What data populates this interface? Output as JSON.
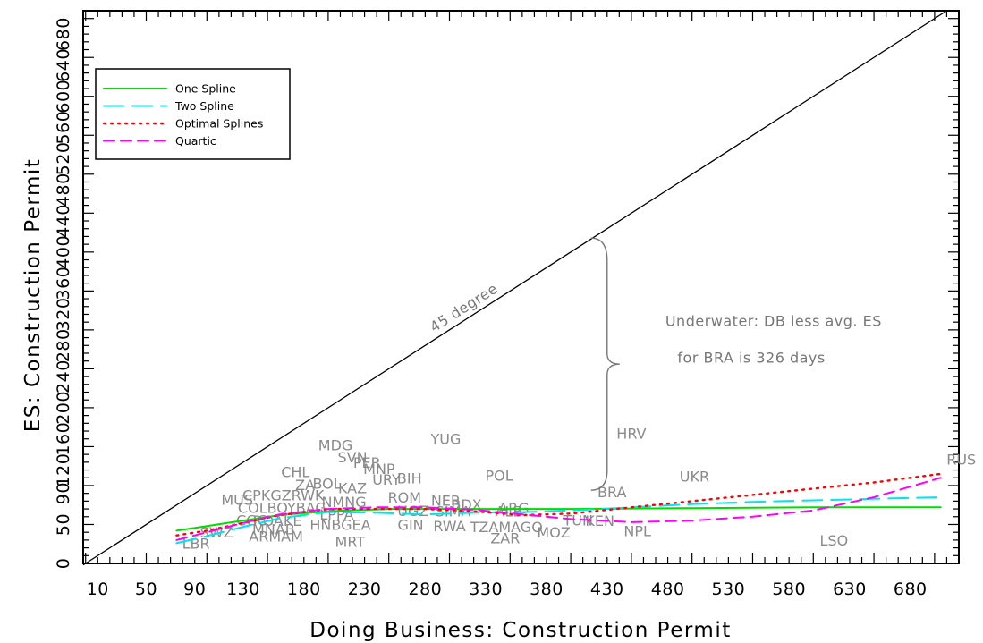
{
  "chart_data": {
    "type": "line",
    "xlabel": "Doing Business: Construction Permit",
    "ylabel": "ES:  Construction Permit",
    "xlim": [
      -2,
      720
    ],
    "ylim": [
      0,
      710
    ],
    "xticks": [
      10,
      50,
      90,
      130,
      180,
      230,
      280,
      330,
      380,
      430,
      480,
      530,
      580,
      630,
      680
    ],
    "yticks": [
      0,
      50,
      90,
      120,
      160,
      200,
      240,
      280,
      320,
      360,
      400,
      440,
      480,
      520,
      560,
      600,
      640,
      680
    ],
    "ytick_labels": [
      "0",
      "50",
      "90",
      "120",
      "160",
      "200",
      "240",
      "280",
      "320",
      "360",
      "400",
      "440",
      "480",
      "520",
      "560",
      "600",
      "640",
      "680"
    ],
    "xtick_labels": [
      "10",
      "50",
      "90",
      "130",
      "180",
      "230",
      "280",
      "330",
      "380",
      "430",
      "480",
      "530",
      "580",
      "630",
      "680"
    ],
    "legend": {
      "position": "top-left",
      "entries": [
        {
          "label": "One Spline",
          "color": "#00dd00",
          "dash": "solid"
        },
        {
          "label": "Two Spline",
          "color": "#00e5ee",
          "dash": "long-dash"
        },
        {
          "label": "Optimal Splines",
          "color": "#ff0000",
          "dash": "dotted"
        },
        {
          "label": "Quartic",
          "color": "#ff00ff",
          "dash": "dash"
        }
      ]
    },
    "reference_line": {
      "label": "45 degree",
      "from": [
        -2,
        -2
      ],
      "to": [
        710,
        710
      ]
    },
    "series": [
      {
        "name": "One Spline",
        "color": "#00dd00",
        "dash": "solid",
        "x": [
          75,
          100,
          130,
          160,
          200,
          250,
          300,
          400,
          500,
          600,
          705
        ],
        "y": [
          42,
          48,
          55,
          62,
          67,
          70,
          70,
          70,
          71,
          72,
          72
        ]
      },
      {
        "name": "Two Spline",
        "color": "#00e5ee",
        "dash": "long-dash",
        "x": [
          75,
          100,
          130,
          160,
          200,
          240,
          280,
          320,
          360,
          400,
          450,
          500,
          550,
          600,
          650,
          705
        ],
        "y": [
          26,
          35,
          47,
          58,
          66,
          65,
          63,
          65,
          66,
          68,
          72,
          76,
          79,
          81,
          83,
          85
        ]
      },
      {
        "name": "Optimal Splines",
        "color": "#ff0000",
        "dash": "dotted",
        "x": [
          75,
          100,
          130,
          160,
          200,
          240,
          280,
          320,
          360,
          400,
          450,
          500,
          550,
          600,
          650,
          705
        ],
        "y": [
          36,
          42,
          52,
          62,
          70,
          70,
          70,
          67,
          62,
          64,
          72,
          80,
          88,
          96,
          104,
          115
        ]
      },
      {
        "name": "Quartic",
        "color": "#ff00ff",
        "dash": "dash",
        "x": [
          75,
          100,
          130,
          160,
          200,
          240,
          280,
          320,
          360,
          400,
          450,
          500,
          550,
          600,
          650,
          705
        ],
        "y": [
          30,
          40,
          52,
          63,
          70,
          72,
          72,
          69,
          63,
          57,
          53,
          55,
          60,
          68,
          85,
          110
        ]
      }
    ],
    "points": [
      {
        "label": "MDG",
        "x": 206,
        "y": 152
      },
      {
        "label": "SVN",
        "x": 220,
        "y": 137
      },
      {
        "label": "PER",
        "x": 232,
        "y": 130
      },
      {
        "label": "MNP",
        "x": 242,
        "y": 122
      },
      {
        "label": "YUG",
        "x": 297,
        "y": 160
      },
      {
        "label": "HRV",
        "x": 450,
        "y": 167
      },
      {
        "label": "CHL",
        "x": 173,
        "y": 118
      },
      {
        "label": "URY",
        "x": 248,
        "y": 108
      },
      {
        "label": "BIH",
        "x": 267,
        "y": 110
      },
      {
        "label": "POL",
        "x": 341,
        "y": 113
      },
      {
        "label": "UKR",
        "x": 502,
        "y": 112
      },
      {
        "label": "RUS",
        "x": 722,
        "y": 134
      },
      {
        "label": "ZA",
        "x": 181,
        "y": 101
      },
      {
        "label": "BOL",
        "x": 199,
        "y": 103
      },
      {
        "label": "KAZ",
        "x": 220,
        "y": 97
      },
      {
        "label": "BRA",
        "x": 434,
        "y": 92
      },
      {
        "label": "CPKGZRWK",
        "x": 163,
        "y": 88
      },
      {
        "label": "ROM",
        "x": 263,
        "y": 85
      },
      {
        "label": "NER",
        "x": 297,
        "y": 81
      },
      {
        "label": "MUS",
        "x": 125,
        "y": 82
      },
      {
        "label": "NMNG",
        "x": 213,
        "y": 79
      },
      {
        "label": "BDX",
        "x": 314,
        "y": 76
      },
      {
        "label": "COLBOYBAG",
        "x": 162,
        "y": 72
      },
      {
        "label": "ARG",
        "x": 353,
        "y": 71
      },
      {
        "label": "UGZ",
        "x": 270,
        "y": 68
      },
      {
        "label": "ALB",
        "x": 349,
        "y": 67
      },
      {
        "label": "LPPA",
        "x": 207,
        "y": 63
      },
      {
        "label": "SIMA",
        "x": 303,
        "y": 67
      },
      {
        "label": "CGC",
        "x": 137,
        "y": 56
      },
      {
        "label": "ROAKE",
        "x": 158,
        "y": 55
      },
      {
        "label": "TUN",
        "x": 406,
        "y": 56
      },
      {
        "label": "KEN",
        "x": 424,
        "y": 55
      },
      {
        "label": "HNBGEA",
        "x": 210,
        "y": 50
      },
      {
        "label": "GIN",
        "x": 268,
        "y": 50
      },
      {
        "label": "RWA",
        "x": 300,
        "y": 48
      },
      {
        "label": "TZAMAGO",
        "x": 347,
        "y": 47
      },
      {
        "label": "MNAB",
        "x": 155,
        "y": 44
      },
      {
        "label": "SWZ",
        "x": 108,
        "y": 40
      },
      {
        "label": "MOZ",
        "x": 386,
        "y": 40
      },
      {
        "label": "NPL",
        "x": 455,
        "y": 42
      },
      {
        "label": "ARMAM",
        "x": 157,
        "y": 35
      },
      {
        "label": "ZAR",
        "x": 346,
        "y": 33
      },
      {
        "label": "MRT",
        "x": 218,
        "y": 28
      },
      {
        "label": "LBR",
        "x": 91,
        "y": 26
      },
      {
        "label": "LSO",
        "x": 617,
        "y": 30
      }
    ],
    "annotations": [
      {
        "id": "underwater_1",
        "text": "Underwater: DB less avg. ES",
        "x": 478,
        "y": 305
      },
      {
        "id": "underwater_2",
        "text": "for BRA is 326 days",
        "x": 488,
        "y": 258
      }
    ],
    "brace": {
      "x": 430,
      "y_bottom": 94,
      "y_top": 418
    }
  }
}
